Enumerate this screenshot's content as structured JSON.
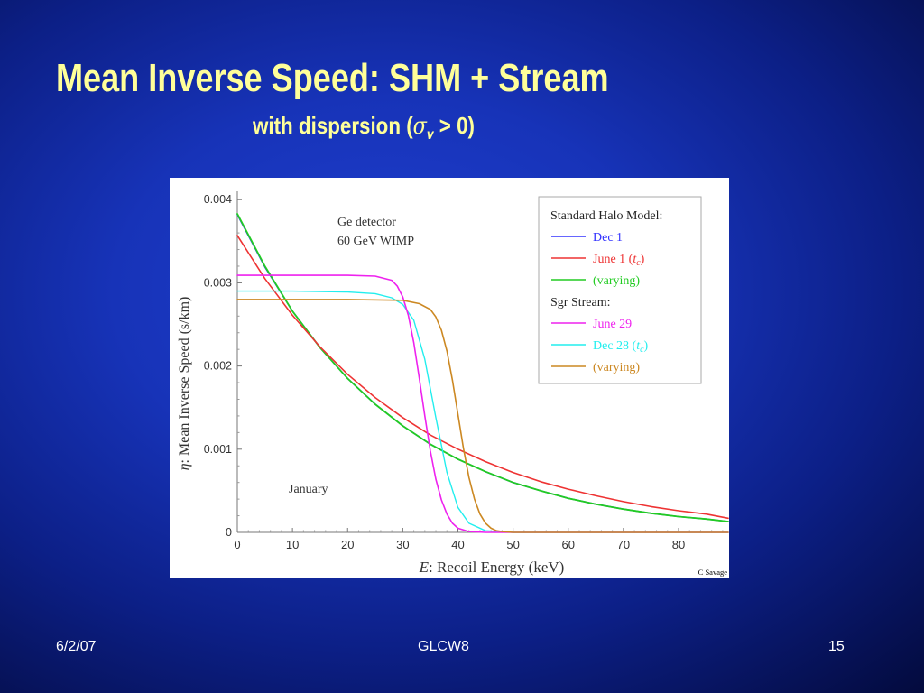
{
  "slide": {
    "title": "Mean Inverse Speed: SHM + Stream",
    "subtitle_prefix": "with dispersion (",
    "subtitle_symbol": "σ",
    "subtitle_sub": "v",
    "subtitle_suffix": " > 0)",
    "footer_left": "6/2/07",
    "footer_center": "GLCW8",
    "footer_right": "15"
  },
  "colors": {
    "title": "#ffff99",
    "dec1": "#3333ff",
    "june1": "#ee3333",
    "shm_varying": "#22cc22",
    "june29": "#ee22ee",
    "dec28": "#22eeee",
    "stream_varying": "#cc8822"
  },
  "chart_data": {
    "type": "line",
    "xlabel_symbol": "E",
    "xlabel_text": ":  Recoil Energy (keV)",
    "ylabel_symbol": "η",
    "ylabel_text": ":  Mean Inverse Speed (s/km)",
    "xlim": [
      0,
      89
    ],
    "ylim": [
      0,
      0.0041
    ],
    "xticks": [
      0,
      10,
      20,
      30,
      40,
      50,
      60,
      70,
      80
    ],
    "yticks": [
      0,
      0.001,
      0.002,
      0.003,
      0.004
    ],
    "ytick_labels": [
      "0",
      "0.001",
      "0.002",
      "0.003",
      "0.004"
    ],
    "annotations": {
      "detector": "Ge detector",
      "wimp": "60 GeV WIMP",
      "month": "January",
      "credit": "C Savage"
    },
    "legend": {
      "position": "top-right",
      "groups": [
        {
          "heading": "Standard Halo Model:",
          "entries": [
            {
              "label": "Dec 1",
              "color_key": "dec1"
            },
            {
              "label": "June 1 (",
              "sym": "t",
              "sub": "c",
              "tail": ")",
              "color_key": "june1"
            },
            {
              "label": "(varying)",
              "color_key": "shm_varying"
            }
          ]
        },
        {
          "heading": "Sgr Stream:",
          "entries": [
            {
              "label": "June 29",
              "color_key": "june29"
            },
            {
              "label": "Dec 28 (",
              "sym": "t",
              "sub": "c",
              "tail": ")",
              "color_key": "dec28"
            },
            {
              "label": "(varying)",
              "color_key": "stream_varying"
            }
          ]
        }
      ]
    },
    "series": [
      {
        "name": "Dec 1",
        "color_key": "dec1",
        "width": 1.6,
        "x": [
          0,
          5,
          10,
          15,
          20,
          25,
          30,
          35,
          40,
          45,
          50,
          55,
          60,
          65,
          70,
          75,
          80,
          85,
          89
        ],
        "y": [
          0.00382,
          0.00319,
          0.00266,
          0.00222,
          0.00185,
          0.00154,
          0.00128,
          0.00106,
          0.00088,
          0.00073,
          0.0006,
          0.0005,
          0.00041,
          0.00034,
          0.00028,
          0.00023,
          0.00019,
          0.00016,
          0.00013
        ]
      },
      {
        "name": "(varying)",
        "color_key": "shm_varying",
        "width": 1.8,
        "x": [
          0,
          5,
          10,
          15,
          20,
          25,
          30,
          35,
          40,
          45,
          50,
          55,
          60,
          65,
          70,
          75,
          80,
          85,
          89
        ],
        "y": [
          0.00383,
          0.0032,
          0.00266,
          0.00222,
          0.00185,
          0.00154,
          0.00128,
          0.00106,
          0.00088,
          0.00073,
          0.0006,
          0.0005,
          0.00041,
          0.00034,
          0.00028,
          0.00023,
          0.00019,
          0.00016,
          0.00013
        ]
      },
      {
        "name": "June 1 (t_c)",
        "color_key": "june1",
        "width": 1.6,
        "x": [
          0,
          5,
          10,
          15,
          20,
          25,
          30,
          35,
          40,
          45,
          50,
          55,
          60,
          65,
          70,
          75,
          80,
          85,
          89
        ],
        "y": [
          0.00357,
          0.00305,
          0.00261,
          0.00223,
          0.0019,
          0.00162,
          0.00138,
          0.00117,
          0.001,
          0.00085,
          0.00072,
          0.00061,
          0.00052,
          0.00044,
          0.00037,
          0.00031,
          0.00026,
          0.00022,
          0.00017
        ]
      },
      {
        "name": "Dec 28 (t_c)",
        "color_key": "dec28",
        "width": 1.4,
        "x": [
          0,
          10,
          20,
          25,
          28,
          30,
          32,
          34,
          36,
          38,
          40,
          42,
          45,
          50,
          60,
          70,
          80,
          89
        ],
        "y": [
          0.0029,
          0.0029,
          0.00289,
          0.00287,
          0.00282,
          0.00274,
          0.00255,
          0.00208,
          0.00138,
          0.00072,
          0.0003,
          0.00011,
          2e-05,
          0,
          0,
          0,
          0,
          0
        ]
      },
      {
        "name": "June 29",
        "color_key": "june29",
        "width": 1.6,
        "x": [
          0,
          10,
          20,
          25,
          28,
          29,
          30,
          31,
          32,
          33,
          34,
          35,
          36,
          37,
          38,
          39,
          40,
          42,
          45,
          50,
          60,
          70,
          80,
          89
        ],
        "y": [
          0.00309,
          0.00309,
          0.00309,
          0.00308,
          0.00303,
          0.00296,
          0.00283,
          0.00261,
          0.00228,
          0.00185,
          0.0014,
          0.00098,
          0.00064,
          0.00039,
          0.00022,
          0.00011,
          5e-05,
          1e-05,
          0,
          0,
          0,
          0,
          0,
          0
        ]
      },
      {
        "name": "(varying)",
        "color_key": "stream_varying",
        "width": 1.6,
        "x": [
          0,
          10,
          20,
          30,
          33,
          35,
          36,
          37,
          38,
          39,
          40,
          41,
          42,
          43,
          44,
          45,
          46,
          47,
          48,
          50,
          55,
          60,
          70,
          80,
          89
        ],
        "y": [
          0.0028,
          0.0028,
          0.0028,
          0.00279,
          0.00275,
          0.00268,
          0.00259,
          0.00243,
          0.00218,
          0.00183,
          0.00142,
          0.00101,
          0.00066,
          0.0004,
          0.00022,
          0.00011,
          5e-05,
          2e-05,
          1e-05,
          0,
          0,
          0,
          0,
          0,
          0
        ]
      }
    ]
  }
}
